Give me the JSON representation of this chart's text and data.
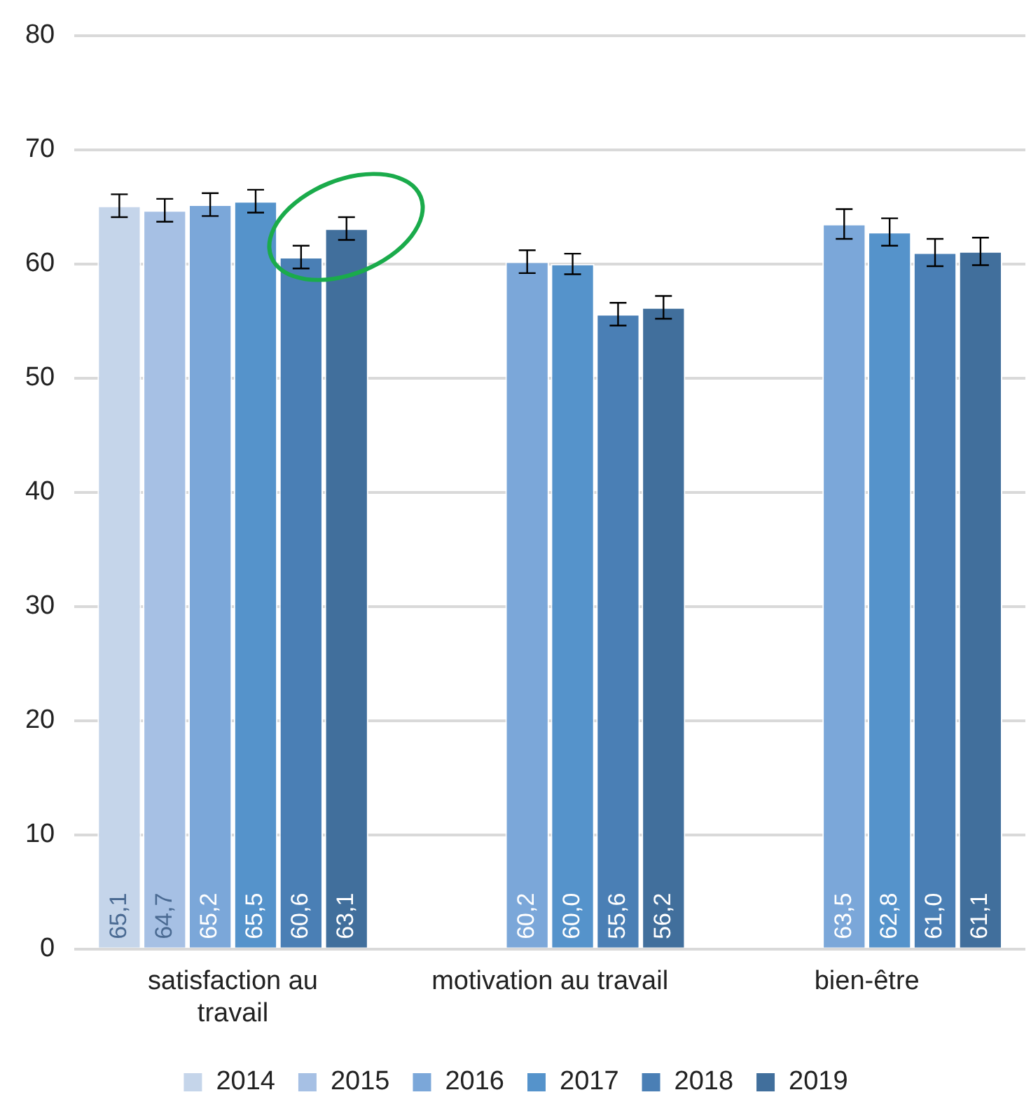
{
  "chart_data": {
    "type": "bar",
    "categories": [
      "satisfaction au travail",
      "motivation au travail",
      "bien-être"
    ],
    "series": [
      {
        "name": "2014",
        "color": "#c5d5ea",
        "values": [
          65.1,
          null,
          null
        ],
        "errors": [
          1.0,
          null,
          null
        ],
        "value_labels": [
          "65,1",
          null,
          null
        ]
      },
      {
        "name": "2015",
        "color": "#a6c0e4",
        "values": [
          64.7,
          null,
          null
        ],
        "errors": [
          1.0,
          null,
          null
        ],
        "value_labels": [
          "64,7",
          null,
          null
        ]
      },
      {
        "name": "2016",
        "color": "#7ba7d9",
        "values": [
          65.2,
          60.2,
          63.5
        ],
        "errors": [
          1.0,
          1.0,
          1.3
        ],
        "value_labels": [
          "65,2",
          "60,2",
          "63,5"
        ]
      },
      {
        "name": "2017",
        "color": "#5593cb",
        "values": [
          65.5,
          60.0,
          62.8
        ],
        "errors": [
          1.0,
          0.9,
          1.2
        ],
        "value_labels": [
          "65,5",
          "60,0",
          "62,8"
        ]
      },
      {
        "name": "2018",
        "color": "#4a7fb5",
        "values": [
          60.6,
          55.6,
          61.0
        ],
        "errors": [
          1.0,
          1.0,
          1.2
        ],
        "value_labels": [
          "60,6",
          "55,6",
          "61,0"
        ]
      },
      {
        "name": "2019",
        "color": "#416f9c",
        "values": [
          63.1,
          56.2,
          61.1
        ],
        "errors": [
          1.0,
          1.0,
          1.2
        ],
        "value_labels": [
          "63,1",
          "56,2",
          "61,1"
        ]
      }
    ],
    "ylim": [
      0,
      80
    ],
    "yticks": [
      0,
      10,
      20,
      30,
      40,
      50,
      60,
      70,
      80
    ],
    "grid": "y",
    "legend": "bottom"
  }
}
